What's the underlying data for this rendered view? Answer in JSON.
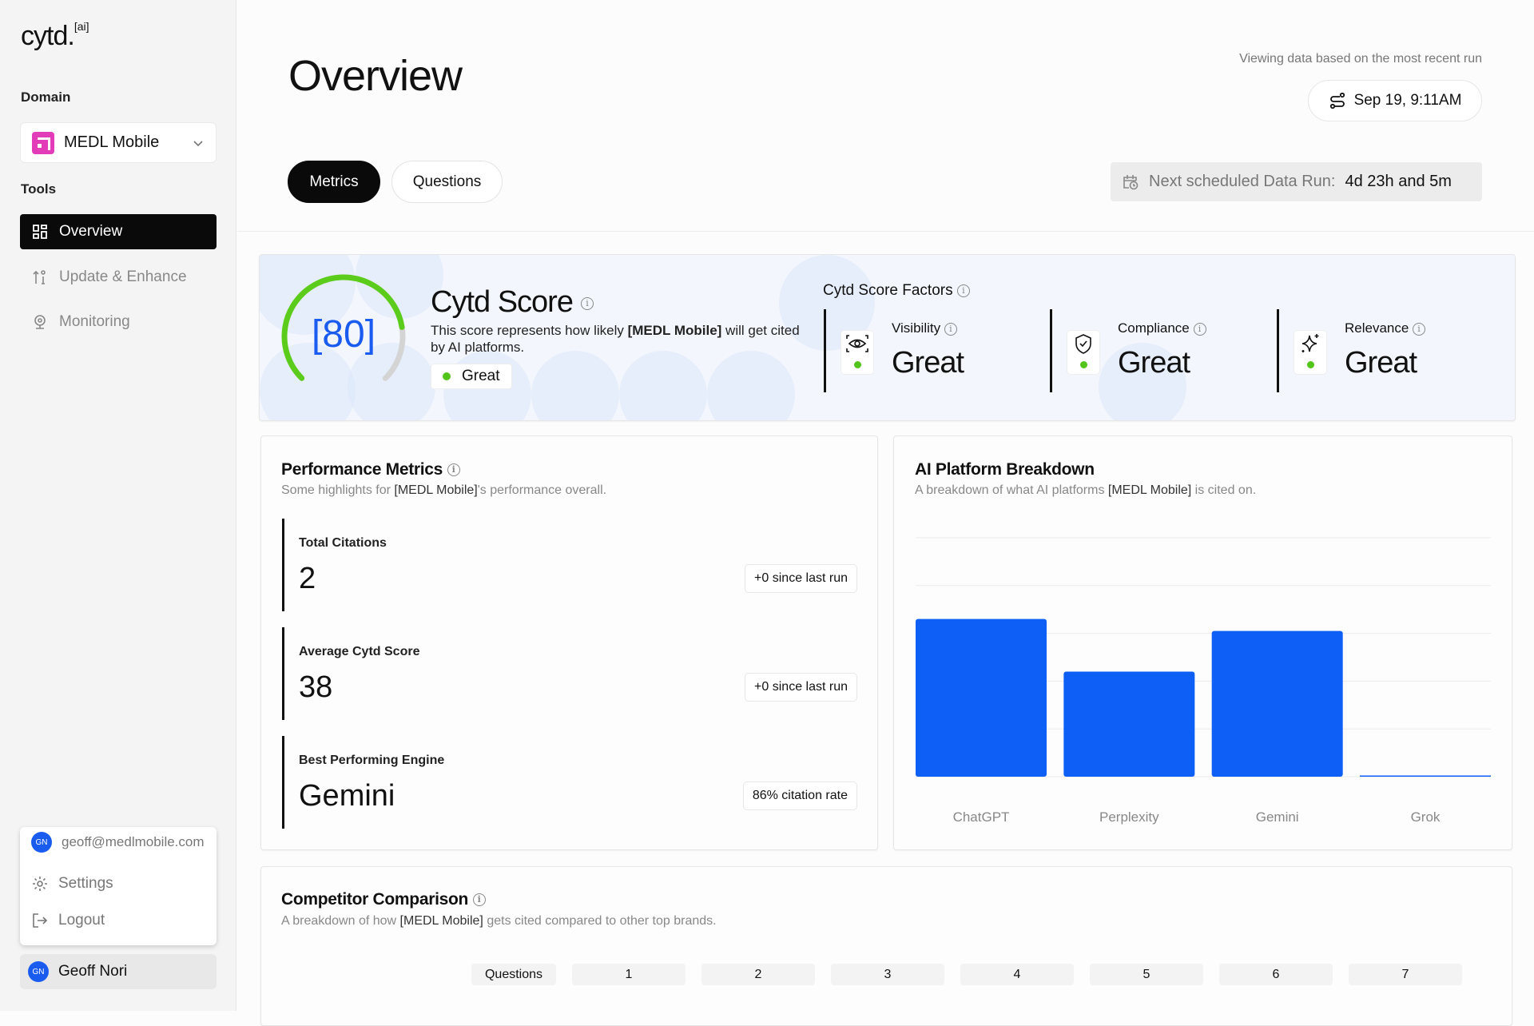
{
  "app": {
    "logo": "cytd.",
    "logo_sup": "[ai]"
  },
  "sidebar": {
    "domain_label": "Domain",
    "domain_value": "MEDL Mobile",
    "tools_label": "Tools",
    "items": [
      {
        "label": "Overview",
        "icon": "grid-icon",
        "active": true
      },
      {
        "label": "Update & Enhance",
        "icon": "sort-icon",
        "active": false
      },
      {
        "label": "Monitoring",
        "icon": "webcam-icon",
        "active": false
      }
    ],
    "user_menu": {
      "email": "geoff@medlmobile.com",
      "initials": "GN",
      "settings": "Settings",
      "logout": "Logout"
    },
    "user_name": "Geoff Nori"
  },
  "header": {
    "title": "Overview",
    "view_note": "Viewing data based on the most recent run",
    "run_date": "Sep 19, 9:11AM",
    "tabs": [
      {
        "label": "Metrics",
        "active": true
      },
      {
        "label": "Questions",
        "active": false
      }
    ],
    "next_run_label": "Next scheduled Data Run:",
    "next_run_value": "4d 23h and 5m"
  },
  "score": {
    "value": 80,
    "display": "[80]",
    "title": "Cytd Score",
    "desc_pre": "This score represents how likely ",
    "desc_brand": "[MEDL Mobile]",
    "desc_post": " will get cited by AI platforms.",
    "status": "Great",
    "colors": {
      "gauge": "#5ccc1c",
      "track": "#d4d4d4",
      "value": "#1a5cf0"
    },
    "factors_title": "Cytd Score Factors",
    "factors": [
      {
        "label": "Visibility",
        "value": "Great",
        "icon": "eye-scan-icon"
      },
      {
        "label": "Compliance",
        "value": "Great",
        "icon": "shield-check-icon"
      },
      {
        "label": "Relevance",
        "value": "Great",
        "icon": "sparkle-icon"
      }
    ]
  },
  "performance": {
    "title": "Performance Metrics",
    "sub_pre": "Some highlights for ",
    "sub_brand": "[MEDL Mobile]",
    "sub_post": "'s performance overall.",
    "metrics": [
      {
        "label": "Total Citations",
        "value": "2",
        "badge": "+0 since last run"
      },
      {
        "label": "Average Cytd Score",
        "value": "38",
        "badge": "+0 since last run"
      },
      {
        "label": "Best Performing Engine",
        "value": "Gemini",
        "badge": "86% citation rate"
      }
    ]
  },
  "platform": {
    "title": "AI Platform Breakdown",
    "sub_pre": "A breakdown of what AI platforms ",
    "sub_brand": "[MEDL Mobile]",
    "sub_post": " is cited on."
  },
  "chart_data": {
    "type": "bar",
    "title": "AI Platform Breakdown",
    "categories": [
      "ChatGPT",
      "Perplexity",
      "Gemini",
      "Grok"
    ],
    "values": [
      66,
      44,
      61,
      0.5
    ],
    "ylim": [
      0,
      100
    ],
    "gridlines": 5,
    "grid": true,
    "color": "#0d5ff5",
    "xlabel": "",
    "ylabel": ""
  },
  "competitor": {
    "title": "Competitor Comparison",
    "sub_pre": "A breakdown of how ",
    "sub_brand": "[MEDL Mobile]",
    "sub_post": " gets cited compared to other top brands.",
    "row_label": "Questions",
    "questions": [
      "1",
      "2",
      "3",
      "4",
      "5",
      "6",
      "7"
    ]
  }
}
